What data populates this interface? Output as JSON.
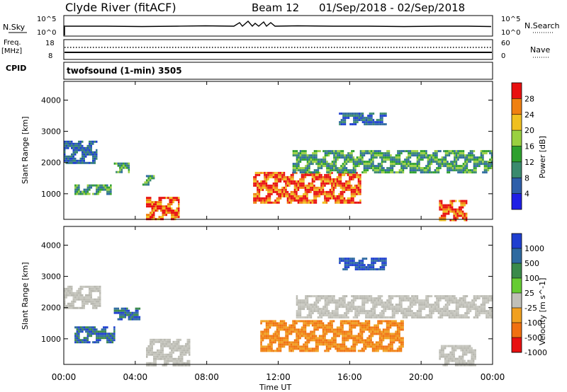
{
  "header": {
    "station": "Clyde River (fitACF)",
    "beam": "Beam 12",
    "date_range": "01/Sep/2018 - 02/Sep/2018"
  },
  "nsky_panel": {
    "left_label": "N.Sky",
    "right_label": "N.Search",
    "left_ticks": [
      "10^5",
      "10^0"
    ],
    "right_ticks": [
      "10^5",
      "10^0"
    ]
  },
  "freq_panel": {
    "left_label_top": "Freq.",
    "left_label_unit": "[MHz]",
    "right_label": "Nave",
    "left_ticks": [
      "18",
      "8"
    ],
    "right_ticks": [
      "60",
      "0"
    ]
  },
  "cpid_panel": {
    "label": "CPID",
    "text": "twofsound (1-min) 3505"
  },
  "x_axis": {
    "label": "Time UT",
    "ticks": [
      "00:00",
      "04:00",
      "08:00",
      "12:00",
      "16:00",
      "20:00",
      "00:00"
    ]
  },
  "chart_data": [
    {
      "type": "heatmap",
      "title": "",
      "xlabel": "Time UT",
      "ylabel": "Slant Range [km]",
      "x_ticks": [
        "00:00",
        "04:00",
        "08:00",
        "12:00",
        "16:00",
        "20:00",
        "00:00"
      ],
      "y_ticks": [
        1000,
        2000,
        3000,
        4000
      ],
      "ylim": [
        180,
        4600
      ],
      "colorbar": {
        "label": "Power [dB]",
        "ticks": [
          4,
          8,
          12,
          16,
          20,
          24,
          28
        ],
        "colors": [
          "#1f1fe6",
          "#2e5faa",
          "#3a8a6e",
          "#2ea02e",
          "#9ad040",
          "#f0c020",
          "#f08010",
          "#e81010"
        ]
      },
      "features": [
        {
          "x_hours": [
            0,
            1.8
          ],
          "range_km": [
            2000,
            2700
          ],
          "level": "low"
        },
        {
          "x_hours": [
            0.6,
            2.6
          ],
          "range_km": [
            1000,
            1300
          ],
          "level": "medium"
        },
        {
          "x_hours": [
            2.8,
            3.6
          ],
          "range_km": [
            1700,
            2000
          ],
          "level": "medium"
        },
        {
          "x_hours": [
            4.4,
            5.0
          ],
          "range_km": [
            1300,
            1600
          ],
          "level": "medium"
        },
        {
          "x_hours": [
            4.6,
            6.4
          ],
          "range_km": [
            180,
            900
          ],
          "level": "high"
        },
        {
          "x_hours": [
            10.6,
            16.6
          ],
          "range_km": [
            700,
            1700
          ],
          "level": "high"
        },
        {
          "x_hours": [
            12.8,
            24.0
          ],
          "range_km": [
            1700,
            2400
          ],
          "level": "medium"
        },
        {
          "x_hours": [
            15.4,
            18.0
          ],
          "range_km": [
            3200,
            3600
          ],
          "level": "low"
        },
        {
          "x_hours": [
            21.0,
            22.5
          ],
          "range_km": [
            180,
            800
          ],
          "level": "high"
        }
      ]
    },
    {
      "type": "heatmap",
      "title": "",
      "xlabel": "Time UT",
      "ylabel": "Slant Range [km]",
      "x_ticks": [
        "00:00",
        "04:00",
        "08:00",
        "12:00",
        "16:00",
        "20:00",
        "00:00"
      ],
      "y_ticks": [
        1000,
        2000,
        3000,
        4000
      ],
      "ylim": [
        180,
        4600
      ],
      "colorbar": {
        "label": "Velocity [m s^-1]",
        "ticks": [
          1000,
          500,
          100,
          25,
          -25,
          -100,
          -500,
          -1000
        ],
        "colors": [
          "#1f3fd0",
          "#2e6aa0",
          "#3a8a4a",
          "#66cc33",
          "#c0c0b8",
          "#f0a020",
          "#f07010",
          "#e81010"
        ]
      },
      "features": [
        {
          "x_hours": [
            0,
            2.0
          ],
          "range_km": [
            2000,
            2700
          ],
          "level": "ground"
        },
        {
          "x_hours": [
            0.6,
            2.8
          ],
          "range_km": [
            900,
            1400
          ],
          "level": "positive"
        },
        {
          "x_hours": [
            2.8,
            4.2
          ],
          "range_km": [
            1600,
            2000
          ],
          "level": "positive"
        },
        {
          "x_hours": [
            4.6,
            7.0
          ],
          "range_km": [
            180,
            1000
          ],
          "level": "ground"
        },
        {
          "x_hours": [
            11.0,
            19.0
          ],
          "range_km": [
            600,
            1600
          ],
          "level": "negative"
        },
        {
          "x_hours": [
            13.0,
            24.0
          ],
          "range_km": [
            1700,
            2400
          ],
          "level": "ground"
        },
        {
          "x_hours": [
            15.4,
            18.0
          ],
          "range_km": [
            3200,
            3600
          ],
          "level": "strong-positive"
        },
        {
          "x_hours": [
            21.0,
            23.0
          ],
          "range_km": [
            180,
            800
          ],
          "level": "ground"
        }
      ]
    }
  ]
}
